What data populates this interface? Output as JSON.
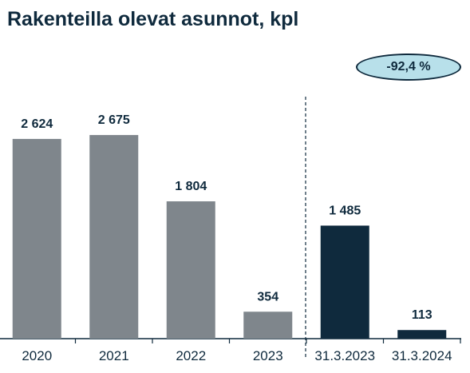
{
  "chart_data": {
    "type": "bar",
    "title": "Rakenteilla olevat asunnot, kpl",
    "categories": [
      "2020",
      "2021",
      "2022",
      "2023",
      "31.3.2023",
      "31.3.2024"
    ],
    "values": [
      2624,
      2675,
      1804,
      354,
      1485,
      113
    ],
    "value_labels": [
      "2 624",
      "2 675",
      "1 804",
      "354",
      "1 485",
      "113"
    ],
    "bar_colors": [
      "#7f868c",
      "#7f868c",
      "#7f868c",
      "#7f868c",
      "#0f2a3d",
      "#0f2a3d"
    ],
    "ylim": [
      0,
      3200
    ],
    "grid": false,
    "annotations": [
      {
        "text": "-92,4 %",
        "shape": "ellipse",
        "fill": "#b8e0ea"
      }
    ],
    "divider": {
      "style": "dashed",
      "between": [
        "2023",
        "31.3.2023"
      ]
    }
  }
}
